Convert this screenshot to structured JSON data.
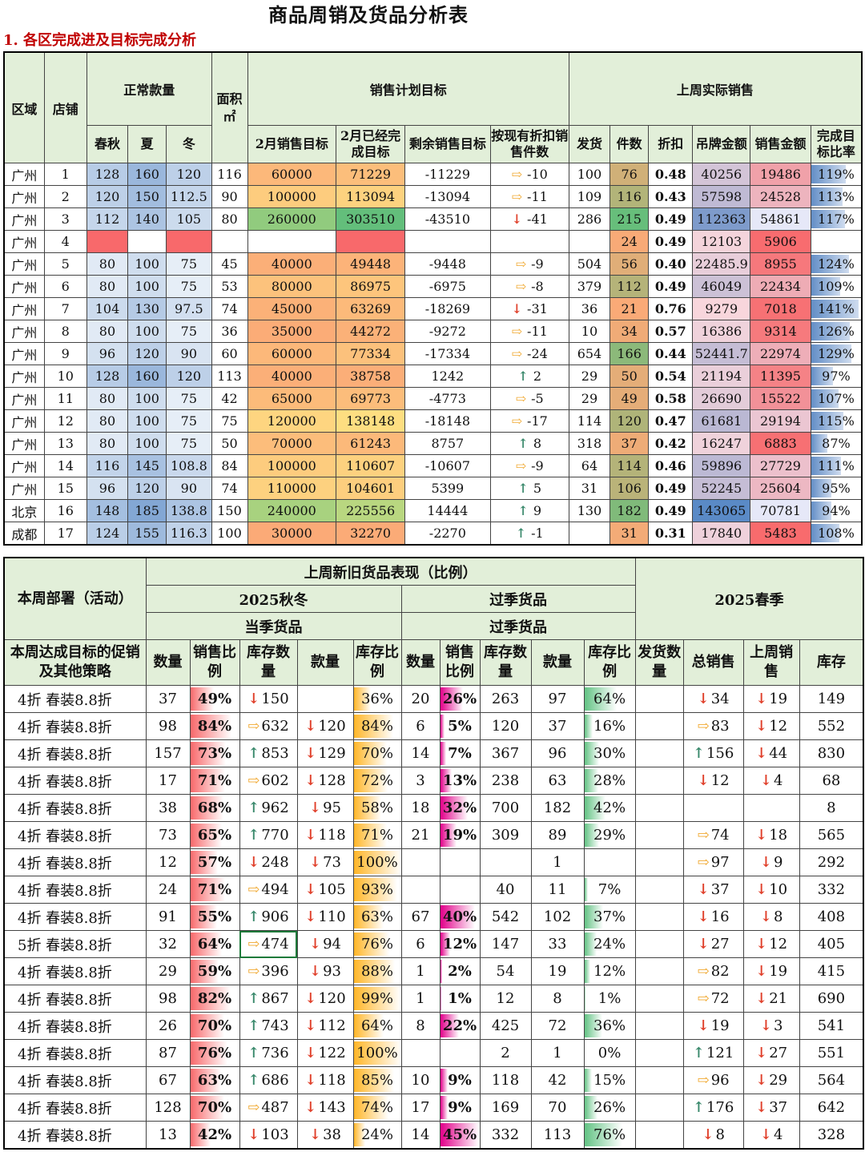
{
  "title": "商品周销及货品分析表",
  "section1": "1. 各区完成进及目标完成分析",
  "t1_headers": {
    "region": "区域",
    "store": "店铺",
    "normal_count": "正常款量",
    "spring_autumn": "春秋",
    "summer": "夏",
    "winter": "冬",
    "area": "面积㎡",
    "sales_target": "销售计划目标",
    "feb_target": "2月销售目标",
    "feb_done": "2月已经完成目标",
    "remaining": "剩余销售目标",
    "by_discount": "按现有折扣销售件数",
    "last_week": "上周实际销售",
    "shipped": "发货",
    "pieces": "件数",
    "discount": "折扣",
    "tag_amount": "吊牌金额",
    "sales_amount": "销售金额",
    "completion": "完成目标比率"
  },
  "t1_rows": [
    {
      "region": "广州",
      "store": "1",
      "sa": "128",
      "su": "160",
      "wi": "120",
      "area": "116",
      "target": "60000",
      "done": "71229",
      "remain": "-11229",
      "dir": "right",
      "cnt": "-10",
      "ship": "100",
      "pcs": "76",
      "disc": "0.48",
      "tag": "40256",
      "sales": "19486",
      "rate": "119%"
    },
    {
      "region": "广州",
      "store": "2",
      "sa": "120",
      "su": "150",
      "wi": "112.5",
      "area": "90",
      "target": "100000",
      "done": "113094",
      "remain": "-13094",
      "dir": "right",
      "cnt": "-11",
      "ship": "109",
      "pcs": "116",
      "disc": "0.43",
      "tag": "57598",
      "sales": "24528",
      "rate": "113%"
    },
    {
      "region": "广州",
      "store": "3",
      "sa": "112",
      "su": "140",
      "wi": "105",
      "area": "80",
      "target": "260000",
      "done": "303510",
      "remain": "-43510",
      "dir": "down",
      "cnt": "-41",
      "ship": "286",
      "pcs": "215",
      "disc": "0.49",
      "tag": "112363",
      "sales": "54861",
      "rate": "117%"
    },
    {
      "region": "广州",
      "store": "4",
      "sa": "",
      "su": "",
      "wi": "",
      "area": "",
      "target": "",
      "done": "",
      "remain": "",
      "dir": "",
      "cnt": "",
      "ship": "",
      "pcs": "24",
      "disc": "0.49",
      "tag": "12103",
      "sales": "5906",
      "rate": ""
    },
    {
      "region": "广州",
      "store": "5",
      "sa": "80",
      "su": "100",
      "wi": "75",
      "area": "45",
      "target": "40000",
      "done": "49448",
      "remain": "-9448",
      "dir": "right",
      "cnt": "-9",
      "ship": "504",
      "pcs": "56",
      "disc": "0.40",
      "tag": "22485.9",
      "sales": "8955",
      "rate": "124%"
    },
    {
      "region": "广州",
      "store": "6",
      "sa": "80",
      "su": "100",
      "wi": "75",
      "area": "53",
      "target": "80000",
      "done": "86975",
      "remain": "-6975",
      "dir": "right",
      "cnt": "-8",
      "ship": "379",
      "pcs": "112",
      "disc": "0.49",
      "tag": "46049",
      "sales": "22434",
      "rate": "109%"
    },
    {
      "region": "广州",
      "store": "7",
      "sa": "104",
      "su": "130",
      "wi": "97.5",
      "area": "74",
      "target": "45000",
      "done": "63269",
      "remain": "-18269",
      "dir": "down",
      "cnt": "-31",
      "ship": "36",
      "pcs": "21",
      "disc": "0.76",
      "tag": "9279",
      "sales": "7018",
      "rate": "141%"
    },
    {
      "region": "广州",
      "store": "8",
      "sa": "80",
      "su": "100",
      "wi": "75",
      "area": "36",
      "target": "35000",
      "done": "44272",
      "remain": "-9272",
      "dir": "right",
      "cnt": "-11",
      "ship": "10",
      "pcs": "34",
      "disc": "0.57",
      "tag": "16386",
      "sales": "9314",
      "rate": "126%"
    },
    {
      "region": "广州",
      "store": "9",
      "sa": "96",
      "su": "120",
      "wi": "90",
      "area": "60",
      "target": "60000",
      "done": "77334",
      "remain": "-17334",
      "dir": "right",
      "cnt": "-24",
      "ship": "654",
      "pcs": "166",
      "disc": "0.44",
      "tag": "52441.7",
      "sales": "22974",
      "rate": "129%"
    },
    {
      "region": "广州",
      "store": "10",
      "sa": "128",
      "su": "160",
      "wi": "120",
      "area": "113",
      "target": "40000",
      "done": "38758",
      "remain": "1242",
      "dir": "up",
      "cnt": "2",
      "ship": "29",
      "pcs": "50",
      "disc": "0.54",
      "tag": "21194",
      "sales": "11395",
      "rate": "97%"
    },
    {
      "region": "广州",
      "store": "11",
      "sa": "80",
      "su": "100",
      "wi": "75",
      "area": "42",
      "target": "65000",
      "done": "69773",
      "remain": "-4773",
      "dir": "right",
      "cnt": "-5",
      "ship": "29",
      "pcs": "49",
      "disc": "0.58",
      "tag": "26690",
      "sales": "15522",
      "rate": "107%"
    },
    {
      "region": "广州",
      "store": "12",
      "sa": "80",
      "su": "100",
      "wi": "75",
      "area": "75",
      "target": "120000",
      "done": "138148",
      "remain": "-18148",
      "dir": "right",
      "cnt": "-17",
      "ship": "114",
      "pcs": "120",
      "disc": "0.47",
      "tag": "61681",
      "sales": "29194",
      "rate": "115%"
    },
    {
      "region": "广州",
      "store": "13",
      "sa": "80",
      "su": "100",
      "wi": "75",
      "area": "50",
      "target": "70000",
      "done": "61243",
      "remain": "8757",
      "dir": "up",
      "cnt": "8",
      "ship": "318",
      "pcs": "37",
      "disc": "0.42",
      "tag": "16247",
      "sales": "6883",
      "rate": "87%"
    },
    {
      "region": "广州",
      "store": "14",
      "sa": "116",
      "su": "145",
      "wi": "108.8",
      "area": "84",
      "target": "100000",
      "done": "110607",
      "remain": "-10607",
      "dir": "right",
      "cnt": "-9",
      "ship": "64",
      "pcs": "114",
      "disc": "0.46",
      "tag": "59896",
      "sales": "27729",
      "rate": "111%"
    },
    {
      "region": "广州",
      "store": "15",
      "sa": "96",
      "su": "120",
      "wi": "90",
      "area": "74",
      "target": "110000",
      "done": "104601",
      "remain": "5399",
      "dir": "up",
      "cnt": "5",
      "ship": "31",
      "pcs": "106",
      "disc": "0.49",
      "tag": "52245",
      "sales": "25604",
      "rate": "95%"
    },
    {
      "region": "北京",
      "store": "16",
      "sa": "148",
      "su": "185",
      "wi": "138.8",
      "area": "150",
      "target": "240000",
      "done": "225556",
      "remain": "14444",
      "dir": "up",
      "cnt": "9",
      "ship": "130",
      "pcs": "182",
      "disc": "0.49",
      "tag": "143065",
      "sales": "70781",
      "rate": "94%"
    },
    {
      "region": "成都",
      "store": "17",
      "sa": "124",
      "su": "155",
      "wi": "116.3",
      "area": "100",
      "target": "30000",
      "done": "32270",
      "remain": "-2270",
      "dir": "up",
      "cnt": "-1",
      "ship": "",
      "pcs": "31",
      "disc": "0.31",
      "tag": "17840",
      "sales": "5483",
      "rate": "108%"
    }
  ],
  "t2_headers": {
    "deploy": "本周部署（活动）",
    "perf": "上周新旧货品表现（比例）",
    "aw2025": "2025秋冬",
    "past": "过季货品",
    "current": "当季货品",
    "past2": "过季货品",
    "spring2025": "2025春季",
    "strategy": "本周达成目标的促销及其他策略",
    "qty": "数量",
    "sales_ratio": "销售比例",
    "stock_qty": "库存数量",
    "styles": "款量",
    "stock_ratio": "库存比例",
    "qty2": "数量",
    "sales_ratio2": "销售比例",
    "stock_qty2": "库存数量",
    "styles2": "款量",
    "stock_ratio2": "库存比例",
    "ship_qty": "发货数量",
    "total_sales": "总销售",
    "last_week_sales": "上周销售",
    "stock": "库存"
  },
  "t2_rows": [
    {
      "promo": "4折 春装8.8折",
      "q": "37",
      "sr": "49%",
      "srv": 49,
      "sqd": "down",
      "sq": "150",
      "std": "",
      "st": "",
      "stk": "36%",
      "stkv": 36,
      "q2": "20",
      "sr2": "26%",
      "sr2v": 26,
      "sq2": "263",
      "st2": "97",
      "stk2": "64%",
      "stk2v": 64,
      "ship": "",
      "tsd": "down",
      "ts": "34",
      "lwd": "down",
      "lw": "19",
      "inv": "149"
    },
    {
      "promo": "4折 春装8.8折",
      "q": "98",
      "sr": "84%",
      "srv": 84,
      "sqd": "right",
      "sq": "632",
      "std": "down",
      "st": "120",
      "stk": "84%",
      "stkv": 84,
      "q2": "6",
      "sr2": "5%",
      "sr2v": 5,
      "sq2": "120",
      "st2": "37",
      "stk2": "16%",
      "stk2v": 16,
      "ship": "",
      "tsd": "right",
      "ts": "83",
      "lwd": "down",
      "lw": "12",
      "inv": "552"
    },
    {
      "promo": "4折 春装8.8折",
      "q": "157",
      "sr": "73%",
      "srv": 73,
      "sqd": "up",
      "sq": "853",
      "std": "down",
      "st": "129",
      "stk": "70%",
      "stkv": 70,
      "q2": "14",
      "sr2": "7%",
      "sr2v": 7,
      "sq2": "367",
      "st2": "96",
      "stk2": "30%",
      "stk2v": 30,
      "ship": "",
      "tsd": "up",
      "ts": "156",
      "lwd": "down",
      "lw": "44",
      "inv": "830"
    },
    {
      "promo": "4折 春装8.8折",
      "q": "17",
      "sr": "71%",
      "srv": 71,
      "sqd": "right",
      "sq": "602",
      "std": "down",
      "st": "128",
      "stk": "72%",
      "stkv": 72,
      "q2": "3",
      "sr2": "13%",
      "sr2v": 13,
      "sq2": "238",
      "st2": "63",
      "stk2": "28%",
      "stk2v": 28,
      "ship": "",
      "tsd": "down",
      "ts": "12",
      "lwd": "down",
      "lw": "4",
      "inv": "68"
    },
    {
      "promo": "4折 春装8.8折",
      "q": "38",
      "sr": "68%",
      "srv": 68,
      "sqd": "up",
      "sq": "962",
      "std": "down",
      "st": "95",
      "stk": "58%",
      "stkv": 58,
      "q2": "18",
      "sr2": "32%",
      "sr2v": 32,
      "sq2": "700",
      "st2": "182",
      "stk2": "42%",
      "stk2v": 42,
      "ship": "",
      "tsd": "",
      "ts": "",
      "lwd": "",
      "lw": "",
      "inv": "8"
    },
    {
      "promo": "4折 春装8.8折",
      "q": "73",
      "sr": "65%",
      "srv": 65,
      "sqd": "up",
      "sq": "770",
      "std": "down",
      "st": "118",
      "stk": "71%",
      "stkv": 71,
      "q2": "21",
      "sr2": "19%",
      "sr2v": 19,
      "sq2": "309",
      "st2": "89",
      "stk2": "29%",
      "stk2v": 29,
      "ship": "",
      "tsd": "right",
      "ts": "74",
      "lwd": "down",
      "lw": "18",
      "inv": "565"
    },
    {
      "promo": "4折 春装8.8折",
      "q": "12",
      "sr": "57%",
      "srv": 57,
      "sqd": "down",
      "sq": "248",
      "std": "down",
      "st": "73",
      "stk": "100%",
      "stkv": 100,
      "q2": "",
      "sr2": "",
      "sr2v": 0,
      "sq2": "",
      "st2": "1",
      "stk2": "",
      "stk2v": 0,
      "ship": "",
      "tsd": "right",
      "ts": "97",
      "lwd": "down",
      "lw": "9",
      "inv": "292"
    },
    {
      "promo": "4折 春装8.8折",
      "q": "24",
      "sr": "71%",
      "srv": 71,
      "sqd": "right",
      "sq": "494",
      "std": "down",
      "st": "105",
      "stk": "93%",
      "stkv": 93,
      "q2": "",
      "sr2": "",
      "sr2v": 0,
      "sq2": "40",
      "st2": "11",
      "stk2": "7%",
      "stk2v": 7,
      "ship": "",
      "tsd": "down",
      "ts": "37",
      "lwd": "down",
      "lw": "10",
      "inv": "332"
    },
    {
      "promo": "4折 春装8.8折",
      "q": "91",
      "sr": "55%",
      "srv": 55,
      "sqd": "up",
      "sq": "906",
      "std": "down",
      "st": "110",
      "stk": "63%",
      "stkv": 63,
      "q2": "67",
      "sr2": "40%",
      "sr2v": 40,
      "sq2": "542",
      "st2": "102",
      "stk2": "37%",
      "stk2v": 37,
      "ship": "",
      "tsd": "down",
      "ts": "16",
      "lwd": "down",
      "lw": "8",
      "inv": "408"
    },
    {
      "promo": "5折 春装8.8折",
      "q": "32",
      "sr": "64%",
      "srv": 64,
      "sqd": "right",
      "sq": "474",
      "std": "down",
      "st": "94",
      "stk": "76%",
      "stkv": 76,
      "q2": "6",
      "sr2": "12%",
      "sr2v": 12,
      "sq2": "147",
      "st2": "33",
      "stk2": "24%",
      "stk2v": 24,
      "ship": "",
      "tsd": "down",
      "ts": "27",
      "lwd": "down",
      "lw": "12",
      "inv": "405"
    },
    {
      "promo": "4折 春装8.8折",
      "q": "29",
      "sr": "59%",
      "srv": 59,
      "sqd": "right",
      "sq": "396",
      "std": "down",
      "st": "93",
      "stk": "88%",
      "stkv": 88,
      "q2": "1",
      "sr2": "2%",
      "sr2v": 2,
      "sq2": "54",
      "st2": "19",
      "stk2": "12%",
      "stk2v": 12,
      "ship": "",
      "tsd": "right",
      "ts": "82",
      "lwd": "down",
      "lw": "19",
      "inv": "415"
    },
    {
      "promo": "4折 春装8.8折",
      "q": "98",
      "sr": "82%",
      "srv": 82,
      "sqd": "up",
      "sq": "867",
      "std": "down",
      "st": "120",
      "stk": "99%",
      "stkv": 99,
      "q2": "1",
      "sr2": "1%",
      "sr2v": 1,
      "sq2": "12",
      "st2": "8",
      "stk2": "1%",
      "stk2v": 1,
      "ship": "",
      "tsd": "right",
      "ts": "72",
      "lwd": "down",
      "lw": "21",
      "inv": "690"
    },
    {
      "promo": "4折 春装8.8折",
      "q": "26",
      "sr": "70%",
      "srv": 70,
      "sqd": "up",
      "sq": "743",
      "std": "down",
      "st": "112",
      "stk": "64%",
      "stkv": 64,
      "q2": "8",
      "sr2": "22%",
      "sr2v": 22,
      "sq2": "425",
      "st2": "72",
      "stk2": "36%",
      "stk2v": 36,
      "ship": "",
      "tsd": "down",
      "ts": "19",
      "lwd": "down",
      "lw": "3",
      "inv": "541"
    },
    {
      "promo": "4折 春装8.8折",
      "q": "87",
      "sr": "76%",
      "srv": 76,
      "sqd": "up",
      "sq": "736",
      "std": "down",
      "st": "122",
      "stk": "100%",
      "stkv": 100,
      "q2": "",
      "sr2": "",
      "sr2v": 0,
      "sq2": "2",
      "st2": "1",
      "stk2": "0%",
      "stk2v": 0,
      "ship": "",
      "tsd": "up",
      "ts": "121",
      "lwd": "down",
      "lw": "27",
      "inv": "551"
    },
    {
      "promo": "4折 春装8.8折",
      "q": "67",
      "sr": "63%",
      "srv": 63,
      "sqd": "up",
      "sq": "686",
      "std": "down",
      "st": "118",
      "stk": "85%",
      "stkv": 85,
      "q2": "10",
      "sr2": "9%",
      "sr2v": 9,
      "sq2": "118",
      "st2": "42",
      "stk2": "15%",
      "stk2v": 15,
      "ship": "",
      "tsd": "right",
      "ts": "96",
      "lwd": "down",
      "lw": "29",
      "inv": "564"
    },
    {
      "promo": "4折 春装8.8折",
      "q": "128",
      "sr": "70%",
      "srv": 70,
      "sqd": "right",
      "sq": "487",
      "std": "down",
      "st": "143",
      "stk": "74%",
      "stkv": 74,
      "q2": "17",
      "sr2": "9%",
      "sr2v": 9,
      "sq2": "169",
      "st2": "70",
      "stk2": "26%",
      "stk2v": 26,
      "ship": "",
      "tsd": "up",
      "ts": "176",
      "lwd": "down",
      "lw": "37",
      "inv": "642"
    },
    {
      "promo": "4折 春装8.8折",
      "q": "13",
      "sr": "42%",
      "srv": 42,
      "sqd": "down",
      "sq": "103",
      "std": "down",
      "st": "38",
      "stk": "24%",
      "stkv": 24,
      "q2": "14",
      "sr2": "45%",
      "sr2v": 45,
      "sq2": "332",
      "st2": "113",
      "stk2": "76%",
      "stk2v": 76,
      "ship": "",
      "tsd": "down",
      "ts": "8",
      "lwd": "down",
      "lw": "4",
      "inv": "328"
    }
  ],
  "colors": {
    "header_bg": "#e2efd9",
    "blue_cell": "#b4c6e7",
    "red_cell": "#f8696b",
    "green_cell": "#63be7b",
    "yellow_cell": "#ffeb84",
    "orange_cell": "#fbaa77",
    "up_arrow": "#3b8a6d",
    "down_arrow": "#e0412c",
    "side_arrow": "#f0a830",
    "magenta_bar": "#e2008a",
    "red_bar": "#f8696b",
    "orange_bar": "#ffb628",
    "green_bar": "#63c384"
  },
  "icons": {
    "up": "↑",
    "down": "↓",
    "right": "⇨"
  }
}
